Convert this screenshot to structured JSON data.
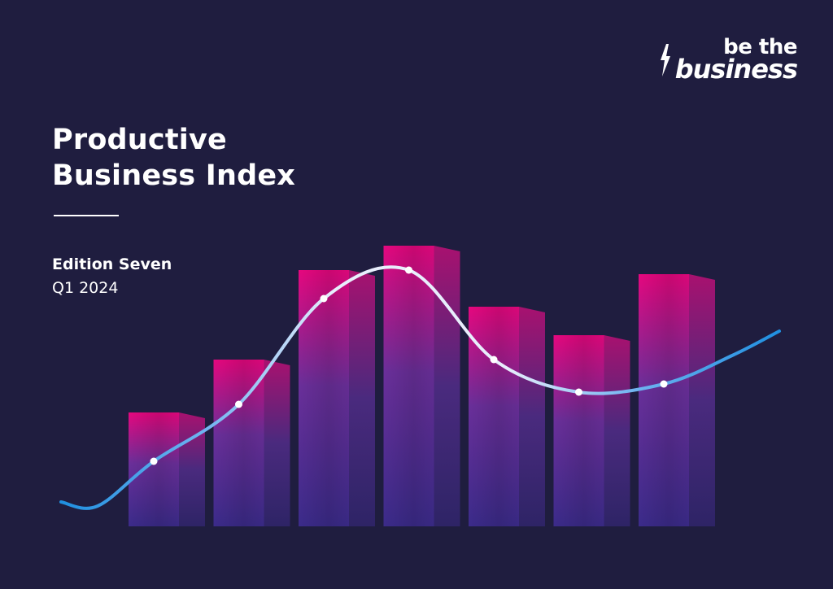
{
  "brand": {
    "logo_line1": "be the",
    "logo_line2": "business",
    "bolt_icon": "lightning-bolt-icon"
  },
  "cover": {
    "title_line1": "Productive",
    "title_line2": "Business Index",
    "edition": "Edition Seven",
    "quarter": "Q1 2024"
  },
  "colors": {
    "background": "#1f1d3f",
    "bar_top": "#e6077f",
    "bar_bottom": "#3b2b8a",
    "line_light": "#e8eefc",
    "line_blue": "#1f8fe0",
    "text": "#ffffff"
  },
  "chart_data": {
    "type": "bar",
    "categories": [
      "",
      "",
      "",
      "",
      "",
      "",
      ""
    ],
    "values": [
      28,
      41,
      63,
      69,
      54,
      47,
      62
    ],
    "ylim": [
      0,
      70
    ],
    "overlay_line": {
      "type": "line",
      "values": [
        16,
        30,
        56,
        63,
        41,
        33,
        35
      ]
    }
  }
}
